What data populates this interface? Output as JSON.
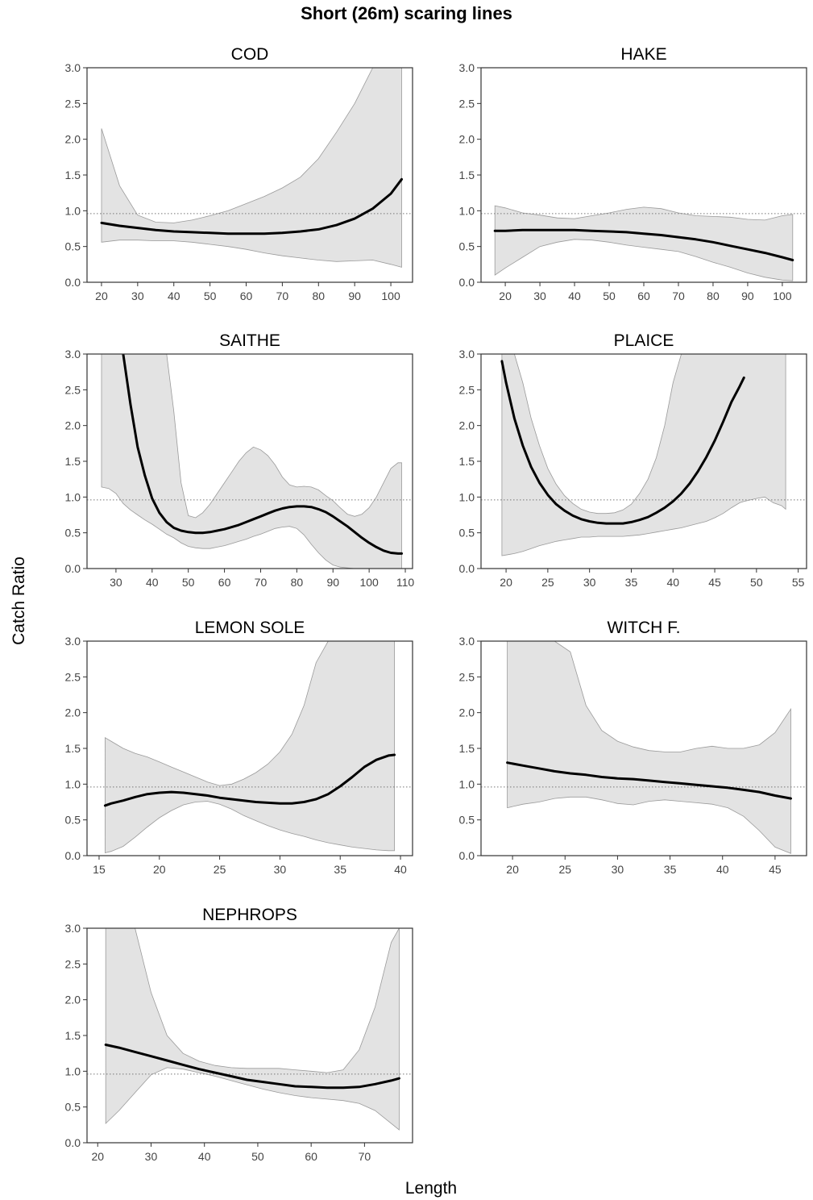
{
  "title": "Short (26m) scaring lines",
  "ylabel": "Catch Ratio",
  "xlabel": "Length",
  "colors": {
    "band": "#e3e3e3",
    "band_edge": "#9a9a9a",
    "line": "#000000",
    "reference": "#777777"
  },
  "chart_data": [
    {
      "type": "line",
      "title": "COD",
      "xlim": [
        16,
        106
      ],
      "ylim": [
        0,
        3
      ],
      "xticks": [
        20,
        30,
        40,
        50,
        60,
        70,
        80,
        90,
        100
      ],
      "yticks": [
        "0.0",
        "0.5",
        "1.0",
        "1.5",
        "2.0",
        "2.5",
        "3.0"
      ],
      "reference_line": 0.96,
      "x": [
        20,
        25,
        30,
        35,
        40,
        45,
        50,
        55,
        60,
        65,
        70,
        75,
        80,
        85,
        90,
        95,
        100,
        103
      ],
      "fit": [
        0.83,
        0.79,
        0.76,
        0.73,
        0.71,
        0.7,
        0.69,
        0.68,
        0.68,
        0.68,
        0.69,
        0.71,
        0.74,
        0.8,
        0.89,
        1.03,
        1.24,
        1.44
      ],
      "upper": [
        2.15,
        1.35,
        0.94,
        0.84,
        0.83,
        0.87,
        0.93,
        1.0,
        1.1,
        1.2,
        1.32,
        1.47,
        1.73,
        2.1,
        2.5,
        3.0,
        3.0,
        3.0
      ],
      "lower": [
        0.56,
        0.59,
        0.59,
        0.58,
        0.58,
        0.56,
        0.53,
        0.5,
        0.46,
        0.41,
        0.37,
        0.34,
        0.31,
        0.29,
        0.3,
        0.31,
        0.25,
        0.21
      ]
    },
    {
      "type": "line",
      "title": "HAKE",
      "xlim": [
        13,
        107
      ],
      "ylim": [
        0,
        3
      ],
      "xticks": [
        20,
        30,
        40,
        50,
        60,
        70,
        80,
        90,
        100
      ],
      "yticks": [
        "0.0",
        "0.5",
        "1.0",
        "1.5",
        "2.0",
        "2.5",
        "3.0"
      ],
      "reference_line": 0.96,
      "x": [
        17,
        20,
        25,
        30,
        35,
        40,
        45,
        50,
        55,
        60,
        65,
        70,
        75,
        80,
        85,
        90,
        95,
        100,
        103
      ],
      "fit": [
        0.72,
        0.72,
        0.73,
        0.73,
        0.73,
        0.73,
        0.72,
        0.71,
        0.7,
        0.68,
        0.66,
        0.63,
        0.6,
        0.56,
        0.51,
        0.46,
        0.41,
        0.35,
        0.31
      ],
      "upper": [
        1.07,
        1.04,
        0.97,
        0.94,
        0.9,
        0.89,
        0.93,
        0.97,
        1.02,
        1.05,
        1.03,
        0.97,
        0.93,
        0.92,
        0.91,
        0.88,
        0.87,
        0.93,
        0.95
      ],
      "lower": [
        0.1,
        0.2,
        0.35,
        0.5,
        0.56,
        0.6,
        0.59,
        0.56,
        0.52,
        0.49,
        0.46,
        0.43,
        0.36,
        0.28,
        0.21,
        0.13,
        0.07,
        0.03,
        0.02
      ]
    },
    {
      "type": "line",
      "title": "SAITHE",
      "xlim": [
        22,
        112
      ],
      "ylim": [
        0,
        3
      ],
      "xticks": [
        30,
        40,
        50,
        60,
        70,
        80,
        90,
        100,
        110
      ],
      "yticks": [
        "0.0",
        "0.5",
        "1.0",
        "1.5",
        "2.0",
        "2.5",
        "3.0"
      ],
      "reference_line": 0.96,
      "x": [
        26,
        28,
        30,
        32,
        34,
        36,
        38,
        40,
        42,
        44,
        46,
        48,
        50,
        52,
        54,
        56,
        58,
        60,
        62,
        64,
        66,
        68,
        70,
        72,
        74,
        76,
        78,
        80,
        82,
        84,
        86,
        88,
        90,
        92,
        94,
        96,
        98,
        100,
        102,
        104,
        106,
        108,
        109
      ],
      "fit": [
        3.5,
        3.3,
        3.1,
        3.0,
        2.3,
        1.7,
        1.3,
        0.98,
        0.78,
        0.65,
        0.57,
        0.53,
        0.51,
        0.5,
        0.5,
        0.51,
        0.53,
        0.55,
        0.58,
        0.61,
        0.65,
        0.69,
        0.73,
        0.77,
        0.81,
        0.84,
        0.86,
        0.87,
        0.87,
        0.86,
        0.83,
        0.79,
        0.73,
        0.66,
        0.59,
        0.51,
        0.43,
        0.36,
        0.3,
        0.25,
        0.22,
        0.21,
        0.21
      ],
      "upper": [
        3.0,
        3.0,
        3.0,
        3.0,
        3.0,
        3.0,
        3.0,
        3.0,
        3.0,
        3.0,
        2.2,
        1.2,
        0.74,
        0.71,
        0.78,
        0.9,
        1.05,
        1.2,
        1.35,
        1.5,
        1.62,
        1.7,
        1.66,
        1.58,
        1.45,
        1.28,
        1.17,
        1.14,
        1.15,
        1.14,
        1.1,
        1.02,
        0.95,
        0.85,
        0.76,
        0.73,
        0.76,
        0.85,
        1.0,
        1.2,
        1.4,
        1.48,
        1.48
      ],
      "lower": [
        1.14,
        1.12,
        1.05,
        0.91,
        0.82,
        0.75,
        0.68,
        0.62,
        0.55,
        0.48,
        0.43,
        0.36,
        0.31,
        0.29,
        0.28,
        0.28,
        0.3,
        0.32,
        0.35,
        0.38,
        0.41,
        0.45,
        0.48,
        0.52,
        0.56,
        0.58,
        0.59,
        0.56,
        0.47,
        0.34,
        0.22,
        0.12,
        0.05,
        0.02,
        0.01,
        0.0,
        0.0,
        0.0,
        0.0,
        0.0,
        0.0,
        0.0,
        0.0
      ]
    },
    {
      "type": "line",
      "title": "PLAICE",
      "xlim": [
        17,
        56
      ],
      "ylim": [
        0,
        3
      ],
      "xticks": [
        20,
        25,
        30,
        35,
        40,
        45,
        50,
        55
      ],
      "yticks": [
        "0.0",
        "0.5",
        "1.0",
        "1.5",
        "2.0",
        "2.5",
        "3.0"
      ],
      "reference_line": 0.96,
      "x": [
        19.5,
        20,
        21,
        22,
        23,
        24,
        25,
        26,
        27,
        28,
        29,
        30,
        31,
        32,
        33,
        34,
        35,
        36,
        37,
        38,
        39,
        40,
        41,
        42,
        43,
        44,
        45,
        46,
        47,
        48,
        48.5,
        50,
        51,
        52,
        53,
        53.5
      ],
      "fit": [
        2.9,
        2.6,
        2.1,
        1.72,
        1.42,
        1.2,
        1.03,
        0.9,
        0.81,
        0.74,
        0.69,
        0.66,
        0.64,
        0.63,
        0.63,
        0.63,
        0.65,
        0.68,
        0.72,
        0.78,
        0.85,
        0.94,
        1.05,
        1.19,
        1.36,
        1.56,
        1.79,
        2.05,
        2.33,
        2.55,
        2.67,
        null,
        null,
        null,
        null,
        null
      ],
      "upper": [
        3.0,
        3.0,
        3.0,
        2.6,
        2.1,
        1.72,
        1.4,
        1.18,
        1.02,
        0.91,
        0.83,
        0.79,
        0.77,
        0.77,
        0.78,
        0.82,
        0.9,
        1.05,
        1.25,
        1.55,
        2.0,
        2.6,
        3.0,
        3.0,
        3.0,
        3.0,
        3.0,
        3.0,
        3.0,
        3.0,
        3.0,
        3.0,
        3.0,
        3.0,
        3.0,
        3.0
      ],
      "lower": [
        0.18,
        0.19,
        0.21,
        0.24,
        0.28,
        0.32,
        0.35,
        0.38,
        0.4,
        0.42,
        0.44,
        0.44,
        0.45,
        0.45,
        0.45,
        0.45,
        0.46,
        0.47,
        0.49,
        0.51,
        0.53,
        0.55,
        0.57,
        0.6,
        0.63,
        0.66,
        0.71,
        0.77,
        0.85,
        0.92,
        0.94,
        0.98,
        1.0,
        0.92,
        0.88,
        0.83
      ]
    },
    {
      "type": "line",
      "title": "LEMON SOLE",
      "xlim": [
        14,
        41
      ],
      "ylim": [
        0,
        3
      ],
      "xticks": [
        15,
        20,
        25,
        30,
        35,
        40
      ],
      "yticks": [
        "0.0",
        "0.5",
        "1.0",
        "1.5",
        "2.0",
        "2.5",
        "3.0"
      ],
      "reference_line": 0.96,
      "x": [
        15.5,
        16,
        17,
        18,
        19,
        20,
        21,
        22,
        23,
        24,
        25,
        26,
        27,
        28,
        29,
        30,
        31,
        32,
        33,
        34,
        35,
        36,
        37,
        38,
        39,
        39.5
      ],
      "fit": [
        0.7,
        0.73,
        0.77,
        0.82,
        0.86,
        0.88,
        0.89,
        0.88,
        0.86,
        0.84,
        0.81,
        0.79,
        0.77,
        0.75,
        0.74,
        0.73,
        0.73,
        0.75,
        0.79,
        0.86,
        0.97,
        1.1,
        1.24,
        1.34,
        1.4,
        1.41
      ],
      "upper": [
        1.65,
        1.6,
        1.5,
        1.43,
        1.38,
        1.31,
        1.24,
        1.17,
        1.1,
        1.03,
        0.98,
        1.0,
        1.07,
        1.16,
        1.28,
        1.45,
        1.7,
        2.1,
        2.7,
        3.0,
        3.0,
        3.0,
        3.0,
        3.0,
        3.0,
        3.0
      ],
      "lower": [
        0.04,
        0.06,
        0.13,
        0.26,
        0.4,
        0.53,
        0.63,
        0.71,
        0.75,
        0.76,
        0.72,
        0.65,
        0.56,
        0.49,
        0.42,
        0.36,
        0.31,
        0.27,
        0.22,
        0.18,
        0.15,
        0.12,
        0.1,
        0.08,
        0.07,
        0.07
      ]
    },
    {
      "type": "line",
      "title": "WITCH F.",
      "xlim": [
        17,
        48
      ],
      "ylim": [
        0,
        3
      ],
      "xticks": [
        20,
        25,
        30,
        35,
        40,
        45
      ],
      "yticks": [
        "0.0",
        "0.5",
        "1.0",
        "1.5",
        "2.0",
        "2.5",
        "3.0"
      ],
      "reference_line": 0.96,
      "x": [
        19.5,
        21,
        22.5,
        24,
        25.5,
        27,
        28.5,
        30,
        31.5,
        33,
        34.5,
        36,
        37.5,
        39,
        40.5,
        42,
        43.5,
        45,
        46.5
      ],
      "fit": [
        1.3,
        1.26,
        1.22,
        1.18,
        1.15,
        1.13,
        1.1,
        1.08,
        1.07,
        1.05,
        1.03,
        1.01,
        0.99,
        0.97,
        0.95,
        0.92,
        0.89,
        0.84,
        0.8
      ],
      "upper": [
        3.0,
        3.0,
        3.0,
        3.0,
        2.85,
        2.1,
        1.75,
        1.6,
        1.52,
        1.47,
        1.45,
        1.45,
        1.5,
        1.53,
        1.5,
        1.5,
        1.55,
        1.72,
        2.05
      ],
      "lower": [
        0.67,
        0.72,
        0.75,
        0.8,
        0.82,
        0.82,
        0.78,
        0.73,
        0.71,
        0.76,
        0.78,
        0.76,
        0.74,
        0.72,
        0.67,
        0.55,
        0.35,
        0.12,
        0.03
      ]
    },
    {
      "type": "line",
      "title": "NEPHROPS",
      "xlim": [
        18,
        79
      ],
      "ylim": [
        0,
        3
      ],
      "xticks": [
        20,
        30,
        40,
        50,
        60,
        70
      ],
      "yticks": [
        "0.0",
        "0.5",
        "1.0",
        "1.5",
        "2.0",
        "2.5",
        "3.0"
      ],
      "reference_line": 0.96,
      "x": [
        21.5,
        24,
        27,
        30,
        33,
        36,
        39,
        42,
        45,
        48,
        51,
        54,
        57,
        60,
        63,
        66,
        69,
        72,
        75,
        76.5
      ],
      "fit": [
        1.37,
        1.33,
        1.27,
        1.21,
        1.15,
        1.09,
        1.03,
        0.98,
        0.93,
        0.88,
        0.85,
        0.82,
        0.79,
        0.78,
        0.77,
        0.77,
        0.78,
        0.82,
        0.87,
        0.9
      ],
      "upper": [
        3.0,
        3.0,
        3.0,
        2.1,
        1.5,
        1.25,
        1.14,
        1.08,
        1.05,
        1.04,
        1.04,
        1.04,
        1.02,
        1.0,
        0.98,
        1.02,
        1.3,
        1.9,
        2.8,
        3.0
      ],
      "lower": [
        0.27,
        0.45,
        0.7,
        0.95,
        1.05,
        1.03,
        0.98,
        0.93,
        0.87,
        0.81,
        0.75,
        0.7,
        0.66,
        0.63,
        0.61,
        0.59,
        0.55,
        0.45,
        0.27,
        0.18
      ]
    }
  ]
}
